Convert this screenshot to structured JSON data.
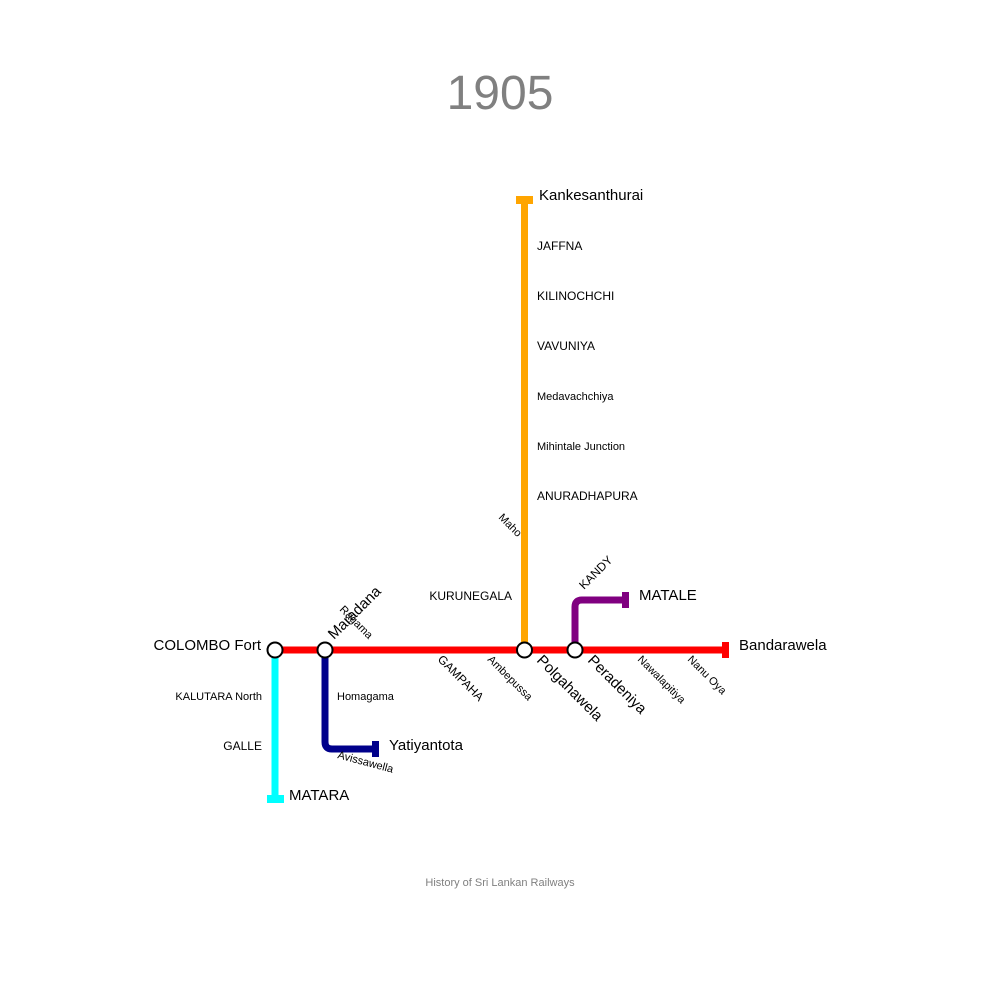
{
  "title": "1905",
  "caption": "History of Sri Lankan Railways",
  "lines": {
    "main": {
      "color": "#ff0000"
    },
    "northern": {
      "color": "#ffa500"
    },
    "coastal": {
      "color": "#00ffff"
    },
    "kelani_valley": {
      "color": "#00008b"
    },
    "matale": {
      "color": "#800080"
    }
  },
  "stations": {
    "colombo_fort": "COLOMBO Fort",
    "maradana": "Maradana",
    "ragama": "Ragama",
    "gampaha": "GAMPAHA",
    "ambepussa": "Ambepussa",
    "polgahawela": "Polgahawela",
    "peradeniya": "Peradeniya",
    "nawalapitiya": "Nawalapitiya",
    "nanu_oya": "Nanu Oya",
    "bandarawela": "Bandarawela",
    "kurunegala": "KURUNEGALA",
    "maho": "Maho",
    "anuradhapura": "ANURADHAPURA",
    "mihintale_junction": "Mihintale Junction",
    "medavachchiya": "Medavachchiya",
    "vavuniya": "VAVUNIYA",
    "kilinochchi": "KILINOCHCHI",
    "jaffna": "JAFFNA",
    "kankesanthurai": "Kankesanthurai",
    "kandy": "KANDY",
    "matale": "MATALE",
    "kalutara_north": "KALUTARA North",
    "galle": "GALLE",
    "matara": "MATARA",
    "homagama": "Homagama",
    "avissawella": "Avissawella",
    "yatiyantota": "Yatiyantota"
  }
}
